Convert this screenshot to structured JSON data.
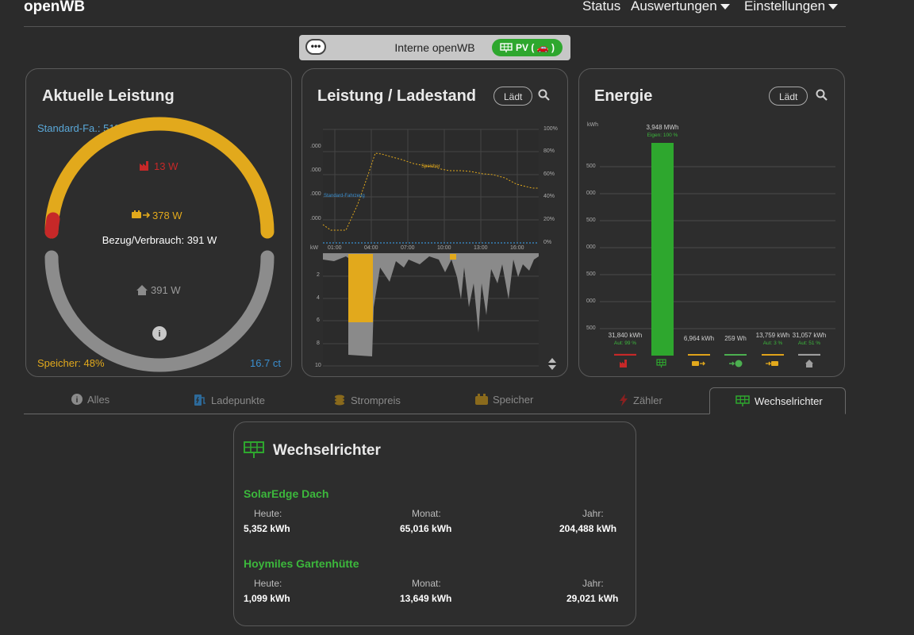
{
  "app": {
    "brand": "openWB"
  },
  "nav": {
    "status": "Status",
    "auswertungen": "Auswertungen",
    "einstellungen": "Einstellungen"
  },
  "box": {
    "more": "•••",
    "name": "Interne openWB",
    "badge": "PV ( 🚗 )"
  },
  "leistung": {
    "title": "Aktuelle Leistung",
    "standard": "Standard-Fa.: 51%",
    "grid": "13 W",
    "battery": "378 W",
    "bezug": "Bezug/Verbrauch: 391 W",
    "house": "391 W",
    "speicher": "Speicher: 48%",
    "price": "16.7 ct"
  },
  "ladestand": {
    "title": "Leistung / Ladestand",
    "button": "Lädt",
    "yleft": [
      ".000",
      ".000",
      ".000",
      ".000"
    ],
    "yright": [
      "100%",
      "80%",
      "60%",
      "40%",
      "20%",
      "0%"
    ],
    "xlabels": [
      "01:00",
      "04:00",
      "07:00",
      "10:00",
      "13:00",
      "16:00"
    ],
    "kw": "kW",
    "ylower": [
      "2",
      "4",
      "6",
      "8",
      "10"
    ],
    "speicher_lbl": "Speicher",
    "fahrzeug_lbl": "Standard-Fahrzeug"
  },
  "energie": {
    "title": "Energie",
    "button": "Lädt",
    "kwh": "kWh",
    "yticks": [
      "500",
      "000",
      "500",
      "000",
      "500",
      "000",
      "500"
    ],
    "chart_data": {
      "type": "bar",
      "categories": [
        "Netz",
        "PV",
        "Speicher",
        "Ladepunkte",
        "Geräte",
        "Haus"
      ],
      "values": [
        31.84,
        3948,
        6.964,
        0.259,
        13.759,
        31.057
      ],
      "labels": [
        "31,840 kWh",
        "3,948 MWh",
        "6,964 kWh",
        "259 Wh",
        "13,759 kWh",
        "31,057 kWh"
      ],
      "sublabels": [
        "Aut: 99 %",
        "Eigen: 100 %",
        "",
        "",
        "Aut: 3 %",
        "Aut: 51 %"
      ],
      "colors": [
        "#c62828",
        "#2ea72e",
        "#e0a31a",
        "#4caf50",
        "#e0a31a",
        "#9e9e9e"
      ]
    }
  },
  "tabs": [
    "Alles",
    "Ladepunkte",
    "Strompreis",
    "Speicher",
    "Zähler",
    "Wechselrichter"
  ],
  "inverter": {
    "title": "Wechselrichter",
    "items": [
      {
        "name": "SolarEdge Dach",
        "today_lbl": "Heute:",
        "month_lbl": "Monat:",
        "year_lbl": "Jahr:",
        "today": "5,352 kWh",
        "month": "65,016 kWh",
        "year": "204,488 kWh"
      },
      {
        "name": "Hoymiles Gartenhütte",
        "today_lbl": "Heute:",
        "month_lbl": "Monat:",
        "year_lbl": "Jahr:",
        "today": "1,099 kWh",
        "month": "13,649 kWh",
        "year": "29,021 kWh"
      }
    ]
  }
}
